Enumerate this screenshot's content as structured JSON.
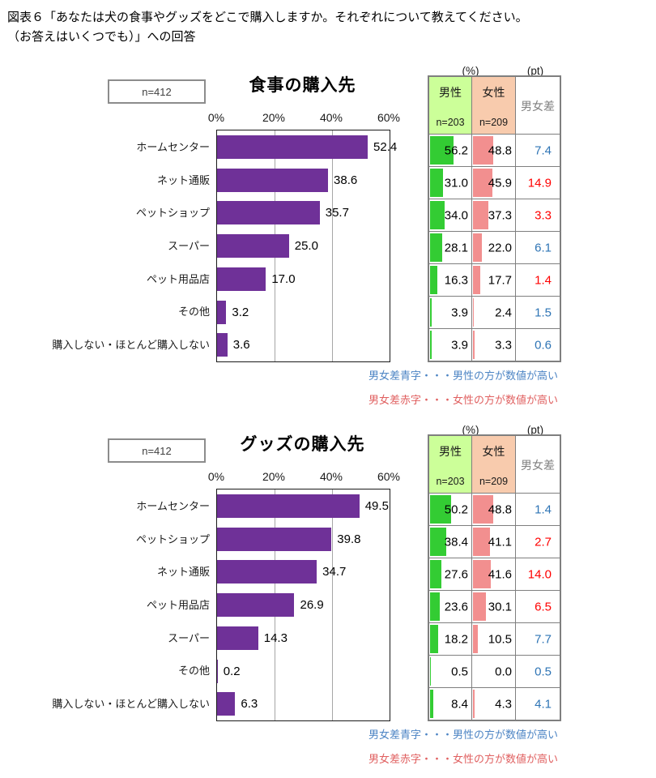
{
  "figure_title": {
    "line1": "図表６「あなたは犬の食事やグッズをどこで購入しますか。それぞれについて教えてください。",
    "line2": "（お答えはいくつでも）」への回答"
  },
  "axis": {
    "ticks": [
      "0%",
      "20%",
      "40%",
      "60%"
    ],
    "max_percent": 60
  },
  "table_header": {
    "pct_unit": "(%)",
    "pt_unit": "(pt)",
    "male_label": "男性",
    "male_n": "n=203",
    "female_label": "女性",
    "female_n": "n=209",
    "diff_label": "男女差"
  },
  "notes": {
    "male_higher": "男女差青字・・・男性の方が数値が高い",
    "female_higher": "男女差赤字・・・女性の方が数値が高い"
  },
  "colors": {
    "bar_purple": "#6F3198",
    "male_bar": "#33CC33",
    "female_bar": "#F28F8F",
    "male_header_bg": "#CCFF99",
    "female_header_bg": "#F8CBAD",
    "diff_blue": "#2E74B5",
    "diff_red": "#FF0000",
    "note_blue": "#4C84C4",
    "note_red": "#E06060"
  },
  "chart_data": [
    {
      "type": "bar",
      "orientation": "horizontal",
      "title": "食事の購入先",
      "sample_label": "n=412",
      "xlim": [
        0,
        60
      ],
      "x_ticks_percent": [
        0,
        20,
        40,
        60
      ],
      "rows": [
        {
          "label": "ホームセンター",
          "value": 52.4,
          "male": 56.2,
          "female": 48.8,
          "diff": 7.4,
          "diff_color": "blue"
        },
        {
          "label": "ネット通販",
          "value": 38.6,
          "male": 31.0,
          "female": 45.9,
          "diff": 14.9,
          "diff_color": "red"
        },
        {
          "label": "ペットショップ",
          "value": 35.7,
          "male": 34.0,
          "female": 37.3,
          "diff": 3.3,
          "diff_color": "red"
        },
        {
          "label": "スーパー",
          "value": 25.0,
          "male": 28.1,
          "female": 22.0,
          "diff": 6.1,
          "diff_color": "blue"
        },
        {
          "label": "ペット用品店",
          "value": 17.0,
          "male": 16.3,
          "female": 17.7,
          "diff": 1.4,
          "diff_color": "red"
        },
        {
          "label": "その他",
          "value": 3.2,
          "male": 3.9,
          "female": 2.4,
          "diff": 1.5,
          "diff_color": "blue"
        },
        {
          "label": "購入しない・ほとんど購入しない",
          "value": 3.6,
          "male": 3.9,
          "female": 3.3,
          "diff": 0.6,
          "diff_color": "blue"
        }
      ]
    },
    {
      "type": "bar",
      "orientation": "horizontal",
      "title": "グッズの購入先",
      "sample_label": "n=412",
      "xlim": [
        0,
        60
      ],
      "x_ticks_percent": [
        0,
        20,
        40,
        60
      ],
      "rows": [
        {
          "label": "ホームセンター",
          "value": 49.5,
          "male": 50.2,
          "female": 48.8,
          "diff": 1.4,
          "diff_color": "blue"
        },
        {
          "label": "ペットショップ",
          "value": 39.8,
          "male": 38.4,
          "female": 41.1,
          "diff": 2.7,
          "diff_color": "red"
        },
        {
          "label": "ネット通販",
          "value": 34.7,
          "male": 27.6,
          "female": 41.6,
          "diff": 14.0,
          "diff_color": "red"
        },
        {
          "label": "ペット用品店",
          "value": 26.9,
          "male": 23.6,
          "female": 30.1,
          "diff": 6.5,
          "diff_color": "red"
        },
        {
          "label": "スーパー",
          "value": 14.3,
          "male": 18.2,
          "female": 10.5,
          "diff": 7.7,
          "diff_color": "blue"
        },
        {
          "label": "その他",
          "value": 0.2,
          "male": 0.5,
          "female": 0.0,
          "diff": 0.5,
          "diff_color": "blue"
        },
        {
          "label": "購入しない・ほとんど購入しない",
          "value": 6.3,
          "male": 8.4,
          "female": 4.3,
          "diff": 4.1,
          "diff_color": "blue"
        }
      ]
    }
  ]
}
